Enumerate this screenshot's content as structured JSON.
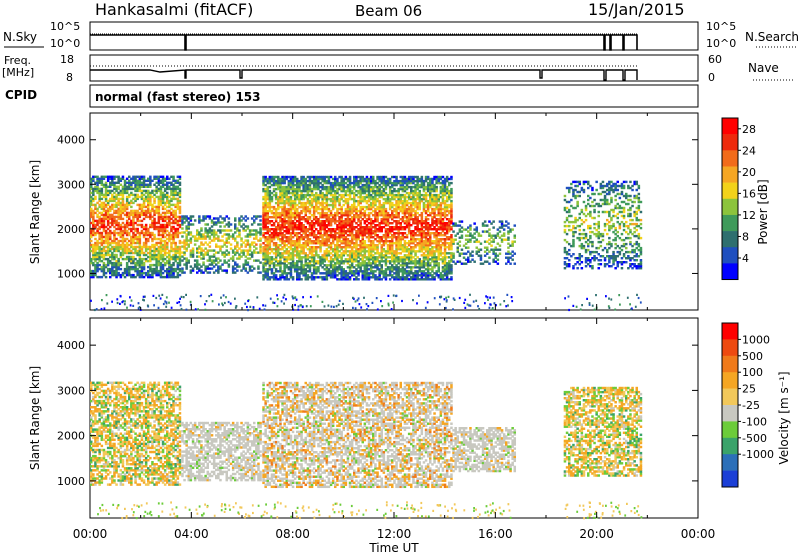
{
  "header": {
    "station": "Hankasalmi (fitACF)",
    "beam": "Beam 06",
    "date": "15/Jan/2015"
  },
  "status_panels": {
    "nsky_label": "N.Sky",
    "nsearch_label": "N.Search",
    "noise_ticks": [
      "10^5",
      "10^0"
    ],
    "freq_label_top": "Freq.",
    "freq_label_unit": "[MHz]",
    "freq_ticks": [
      "18",
      "8"
    ],
    "nave_label": "Nave",
    "nave_ticks": [
      "60",
      "0"
    ],
    "cpid_label": "CPID",
    "cpid_text": "normal (fast stereo) 153"
  },
  "x_axis": {
    "label": "Time UT",
    "ticks": [
      "00:00",
      "04:00",
      "08:00",
      "12:00",
      "16:00",
      "20:00",
      "00:00"
    ]
  },
  "chart_data": [
    {
      "type": "heatmap",
      "name": "power",
      "title": "",
      "xlabel": "Time UT",
      "ylabel": "Slant Range [km]",
      "xlim": [
        0,
        24
      ],
      "ylim": [
        180,
        4600
      ],
      "yticks": [
        "1000",
        "2000",
        "3000",
        "4000"
      ],
      "colorbar": {
        "label": "Power [dB]",
        "ticks": [
          "4",
          "8",
          "12",
          "16",
          "20",
          "24",
          "28"
        ],
        "colors": [
          "#0000ff",
          "#1f4fbf",
          "#2e6f6f",
          "#3f9a5a",
          "#8cc43c",
          "#f2d21a",
          "#f5a623",
          "#f26b1a",
          "#ee2a0c",
          "#ff0000"
        ],
        "range": [
          0,
          30
        ]
      },
      "echo_regions": [
        {
          "t0": 0.0,
          "t1": 3.6,
          "r0": 900,
          "r1": 3200,
          "level": 0.7
        },
        {
          "t0": 3.6,
          "t1": 6.8,
          "r0": 1000,
          "r1": 2300,
          "level": 0.45
        },
        {
          "t0": 6.8,
          "t1": 14.3,
          "r0": 850,
          "r1": 3200,
          "level": 0.75
        },
        {
          "t0": 14.3,
          "t1": 16.8,
          "r0": 1200,
          "r1": 2200,
          "level": 0.3
        },
        {
          "t0": 18.7,
          "t1": 21.8,
          "r0": 1100,
          "r1": 3100,
          "level": 0.35
        }
      ]
    },
    {
      "type": "heatmap",
      "name": "velocity",
      "title": "",
      "xlabel": "Time UT",
      "ylabel": "Slant Range [km]",
      "xlim": [
        0,
        24
      ],
      "ylim": [
        180,
        4600
      ],
      "yticks": [
        "1000",
        "2000",
        "3000",
        "4000"
      ],
      "colorbar": {
        "label": "Velocity [m s⁻¹]",
        "ticks": [
          "1000",
          "500",
          "100",
          "25",
          "-25",
          "-100",
          "-500",
          "-1000"
        ],
        "colors": [
          "#1b3fd6",
          "#2b6fb8",
          "#3aa36a",
          "#6ccc3a",
          "#c8c8c0",
          "#f2c85a",
          "#f5a623",
          "#f07a1a",
          "#ee4a10",
          "#ff0000"
        ],
        "range": [
          -1000,
          1000
        ]
      },
      "echo_regions": [
        {
          "t0": 0.0,
          "t1": 3.6,
          "r0": 900,
          "r1": 3200,
          "mix": "orange-green"
        },
        {
          "t0": 3.6,
          "t1": 6.8,
          "r0": 1000,
          "r1": 2300,
          "mix": "grey"
        },
        {
          "t0": 6.8,
          "t1": 14.3,
          "r0": 850,
          "r1": 3200,
          "mix": "grey-orange"
        },
        {
          "t0": 14.3,
          "t1": 16.8,
          "r0": 1200,
          "r1": 2200,
          "mix": "grey"
        },
        {
          "t0": 18.7,
          "t1": 21.8,
          "r0": 1100,
          "r1": 3100,
          "mix": "orange-green"
        }
      ]
    }
  ]
}
